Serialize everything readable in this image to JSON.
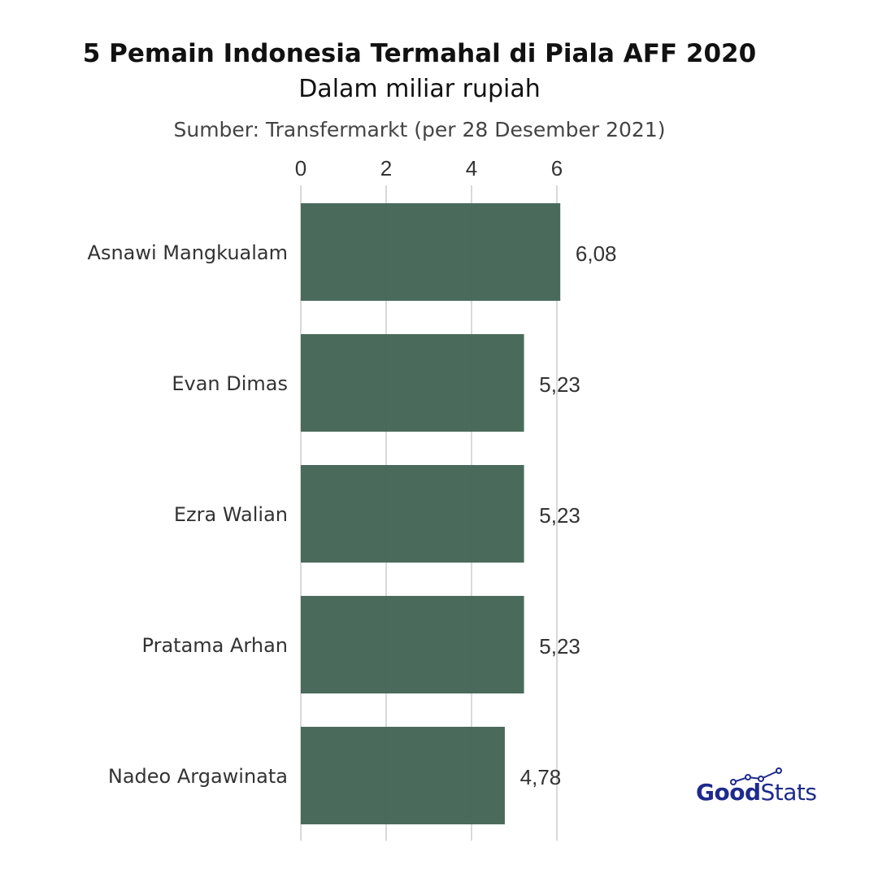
{
  "header": {
    "title": "5 Pemain Indonesia Termahal di Piala AFF 2020",
    "subtitle": "Dalam miliar rupiah",
    "source": "Sumber: Transfermarkt (per 28 Desember 2021)"
  },
  "brand": {
    "good": "Good",
    "stats": "Stats"
  },
  "colors": {
    "bar": "#446656",
    "grid": "#d9d9d9",
    "text": "#333333",
    "brand": "#1e2a8c"
  },
  "chart_data": {
    "type": "bar",
    "orientation": "horizontal",
    "title": "5 Pemain Indonesia Termahal di Piala AFF 2020",
    "subtitle": "Dalam miliar rupiah",
    "categories": [
      "Asnawi Mangkualam",
      "Evan Dimas",
      "Ezra Walian",
      "Pratama Arhan",
      "Nadeo Argawinata"
    ],
    "values": [
      6.08,
      5.23,
      5.23,
      5.23,
      4.78
    ],
    "value_labels": [
      "6,08",
      "5,23",
      "5,23",
      "5,23",
      "4,78"
    ],
    "x_ticks": [
      0,
      2,
      4,
      6
    ],
    "x_tick_labels": [
      "0",
      "2",
      "4",
      "6"
    ],
    "xlim": [
      0,
      6.08
    ],
    "axis_position": "top",
    "grid": true,
    "legend": "none"
  }
}
